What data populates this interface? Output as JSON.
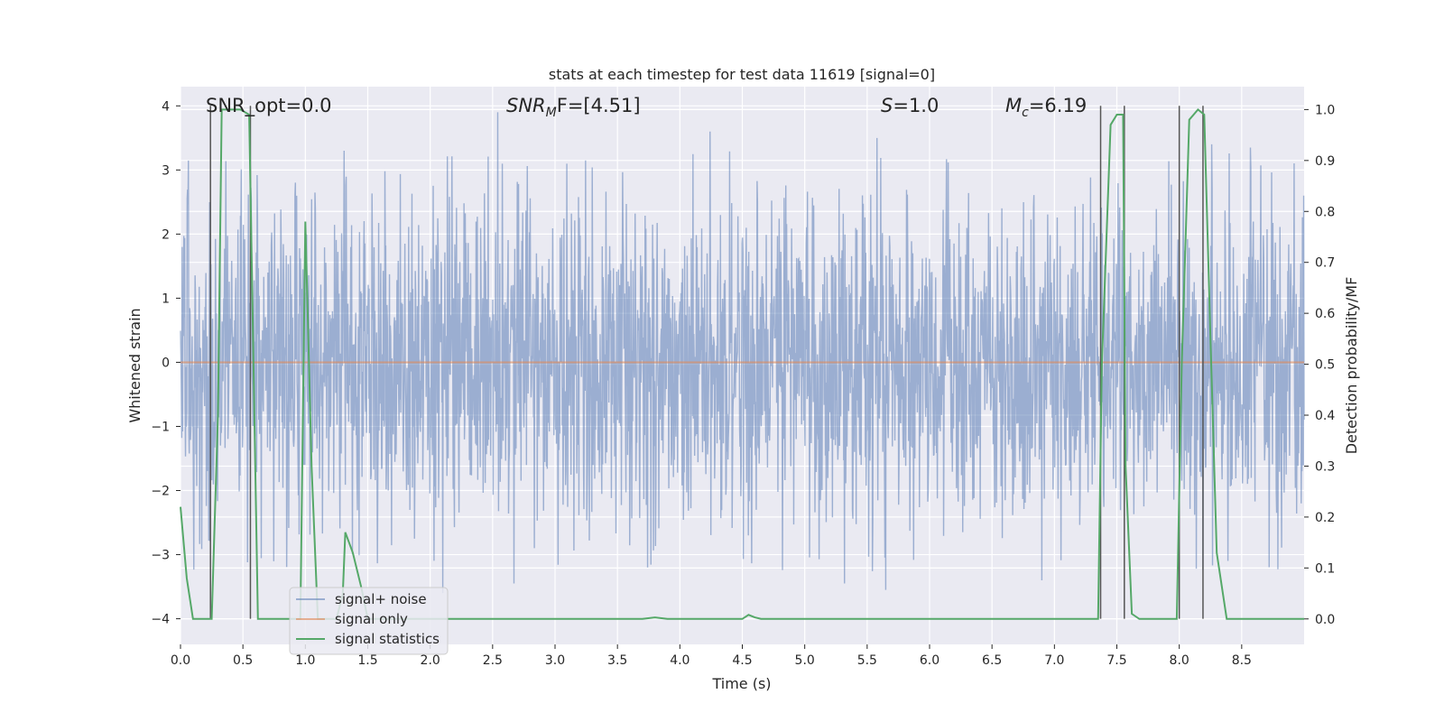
{
  "chart_data": {
    "type": "line",
    "title": "stats at each timestep for test data 11619 [signal=0]",
    "xlabel": "Time (s)",
    "ylabel": "Whitened strain",
    "ylabel_right": "Detection probability/MF",
    "xlim": [
      0.0,
      9.0
    ],
    "ylim": [
      -4.4,
      4.3
    ],
    "ylim_right": [
      -0.05,
      1.045
    ],
    "x_ticks": [
      0.0,
      0.5,
      1.0,
      1.5,
      2.0,
      2.5,
      3.0,
      3.5,
      4.0,
      4.5,
      5.0,
      5.5,
      6.0,
      6.5,
      7.0,
      7.5,
      8.0,
      8.5
    ],
    "x_tick_labels": [
      "0.0",
      "0.5",
      "1.0",
      "1.5",
      "2.0",
      "2.5",
      "3.0",
      "3.5",
      "4.0",
      "4.5",
      "5.0",
      "5.5",
      "6.0",
      "6.5",
      "7.0",
      "7.5",
      "8.0",
      "8.5"
    ],
    "y_ticks": [
      4,
      3,
      2,
      1,
      0,
      -1,
      -2,
      -3,
      -4
    ],
    "y_tick_labels": [
      "4",
      "3",
      "2",
      "1",
      "0",
      "−1",
      "−2",
      "−3",
      "−4"
    ],
    "y_ticks_right": [
      1.0,
      0.9,
      0.8,
      0.7,
      0.6,
      0.5,
      0.4,
      0.3,
      0.2,
      0.1,
      0.0
    ],
    "y_tick_labels_right": [
      "1.0",
      "0.9",
      "0.8",
      "0.7",
      "0.6",
      "0.5",
      "0.4",
      "0.3",
      "0.2",
      "0.1",
      "0.0"
    ],
    "annotations": {
      "snr_opt": "SNR_opt=0.0",
      "snr_mf_sym": "SNR",
      "snr_mf_sub": "M",
      "snr_mf_rest": "F=[4.51]",
      "s_sym": "S",
      "s_rest": "=1.0",
      "mc_sym": "M",
      "mc_sub": "c",
      "mc_rest": "=6.19"
    },
    "legend": {
      "position": "lower-left",
      "entries": [
        "signal+ noise",
        "signal only",
        "signal statistics"
      ]
    },
    "series": [
      {
        "name": "signal+ noise",
        "color": "#4c72b0",
        "description_values": "whitened noise, typical amplitude ~±1.5, peaks to ~±3.9",
        "seed": 11619,
        "n_samples": 2700,
        "peak_events": [
          [
            2.54,
            3.9
          ],
          [
            4.24,
            3.6
          ],
          [
            5.58,
            3.5
          ],
          [
            5.65,
            -3.55
          ],
          [
            5.32,
            -3.45
          ],
          [
            2.1,
            -3.6
          ],
          [
            2.67,
            -3.45
          ],
          [
            1.31,
            3.3
          ],
          [
            6.9,
            -3.4
          ],
          [
            8.57,
            3.35
          ],
          [
            8.26,
            3.4
          ],
          [
            4.55,
            -2.7
          ]
        ]
      },
      {
        "name": "signal only",
        "color": "#dd8452",
        "x": [
          0.0,
          9.0
        ],
        "y": [
          0.0,
          0.0
        ]
      },
      {
        "name": "signal statistics",
        "color": "#55a868",
        "axis": "right",
        "x": [
          0.0,
          0.05,
          0.1,
          0.25,
          0.3,
          0.33,
          0.48,
          0.55,
          0.62,
          0.64,
          0.96,
          1.0,
          1.05,
          1.1,
          1.2,
          1.25,
          1.3,
          1.32,
          1.38,
          1.45,
          1.5,
          3.7,
          3.8,
          3.9,
          4.5,
          4.55,
          4.6,
          4.65,
          5.0,
          7.35,
          7.38,
          7.45,
          7.5,
          7.55,
          7.57,
          7.62,
          7.68,
          7.75,
          7.98,
          8.02,
          8.08,
          8.15,
          8.2,
          8.25,
          8.3,
          8.38,
          8.45,
          8.8,
          9.0
        ],
        "y": [
          0.22,
          0.08,
          0.0,
          0.0,
          0.4,
          1.0,
          1.0,
          0.99,
          0.0,
          0.0,
          0.0,
          0.78,
          0.3,
          0.0,
          0.0,
          0.0,
          0.05,
          0.17,
          0.13,
          0.06,
          0.0,
          0.0,
          0.003,
          0.0,
          0.0,
          0.008,
          0.003,
          0.0,
          0.0,
          0.0,
          0.5,
          0.97,
          0.99,
          0.99,
          0.3,
          0.01,
          0.0,
          0.0,
          0.0,
          0.5,
          0.98,
          1.0,
          0.99,
          0.55,
          0.13,
          0.0,
          0.0,
          0.0,
          0.0
        ]
      }
    ],
    "vertical_markers": [
      {
        "x": 0.24,
        "y_top": 4.0,
        "y_bottom": -4.0
      },
      {
        "x": 0.56,
        "y_top": 4.0,
        "y_bottom": -4.0
      },
      {
        "x": 7.37,
        "y_top": 4.0,
        "y_bottom": -4.0
      },
      {
        "x": 7.56,
        "y_top": 4.0,
        "y_bottom": -4.0
      },
      {
        "x": 8.0,
        "y_top": 4.0,
        "y_bottom": -4.0
      },
      {
        "x": 8.19,
        "y_top": 4.0,
        "y_bottom": -4.0
      }
    ],
    "grid": true,
    "colors": {
      "background": "#eaeaf2",
      "grid": "#ffffff",
      "marker": "#555555"
    }
  }
}
